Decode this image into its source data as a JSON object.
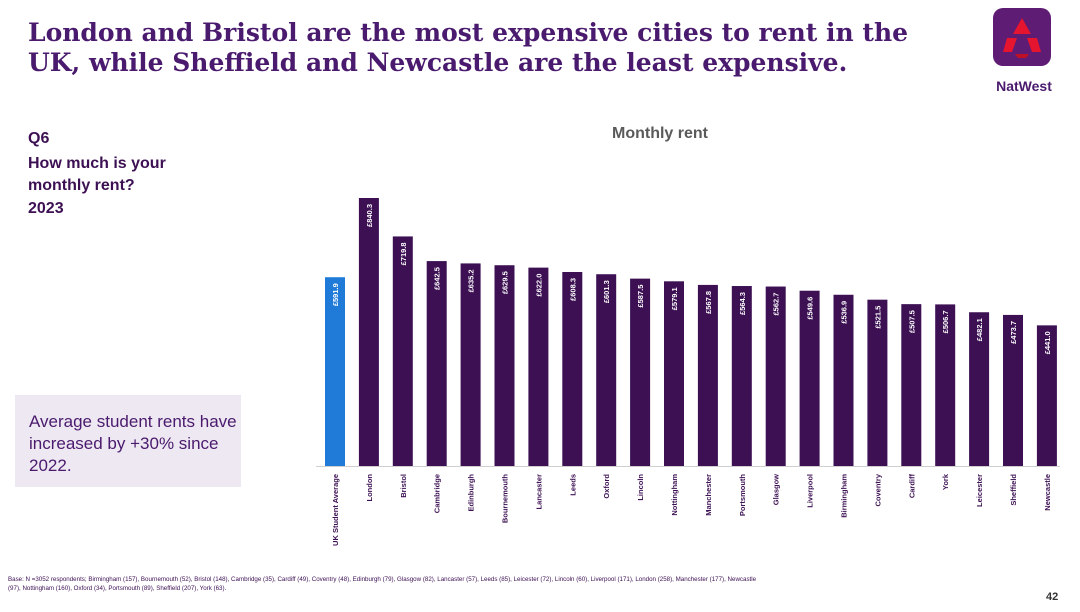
{
  "header": {
    "title": "London and Bristol are the most expensive cities to rent in the UK, while Sheffield and Newcastle are the least expensive.",
    "logo_text": "NatWest"
  },
  "question": {
    "code": "Q6",
    "text": "How much is your monthly rent?",
    "year": "2023"
  },
  "callout": {
    "text": "Average student rents have increased by +30% since 2022."
  },
  "footer": {
    "base_note": "Base: N =3052 respondents; Birmingham (157), Bournemouth (52), Bristol (148), Cambridge (35), Cardiff (49), Coventry (48), Edinburgh (79), Glasgow (82), Lancaster (57), Leeds (85), Leicester (72), Lincoln (60), Liverpool (171), London (258), Manchester (177), Newcastle (97), Nottingham (160), Oxford (34), Portsmouth (89), Sheffield (207), York (63).",
    "page_number": "42"
  },
  "colors": {
    "highlight_bar": "#1f7ad8",
    "bar": "#3c1053",
    "title": "#4a1a6e",
    "logo_bg": "#5e1c75",
    "logo_mark": "#e5142f"
  },
  "icons": {
    "logo": "natwest-cube-logo"
  },
  "chart_data": {
    "type": "bar",
    "title": "Monthly rent",
    "categories": [
      "UK Student Average",
      "London",
      "Bristol",
      "Cambridge",
      "Edinburgh",
      "Bournemouth",
      "Lancaster",
      "Leeds",
      "Oxford",
      "Lincoln",
      "Nottingham",
      "Manchester",
      "Portsmouth",
      "Glasgow",
      "Liverpool",
      "Birmingham",
      "Coventry",
      "Cardiff",
      "York",
      "Leicester",
      "Sheffield",
      "Newcastle"
    ],
    "values": [
      591.9,
      840.3,
      719.8,
      642.5,
      635.2,
      629.5,
      622.0,
      608.3,
      601.3,
      587.5,
      579.1,
      567.8,
      564.3,
      562.7,
      549.6,
      536.9,
      521.5,
      507.5,
      506.7,
      482.1,
      473.7,
      441.0
    ],
    "value_labels": [
      "£591.9",
      "£840.3",
      "£719.8",
      "£642.5",
      "£635.2",
      "£629.5",
      "£622.0",
      "£608.3",
      "£601.3",
      "£587.5",
      "£579.1",
      "£567.8",
      "£564.3",
      "£562.7",
      "£549.6",
      "£536.9",
      "£521.5",
      "£507.5",
      "£506.7",
      "£482.1",
      "£473.7",
      "£441.0"
    ],
    "highlight_category": "UK Student Average",
    "ylim": [
      0,
      840.3
    ],
    "grid": false,
    "legend": "none"
  }
}
